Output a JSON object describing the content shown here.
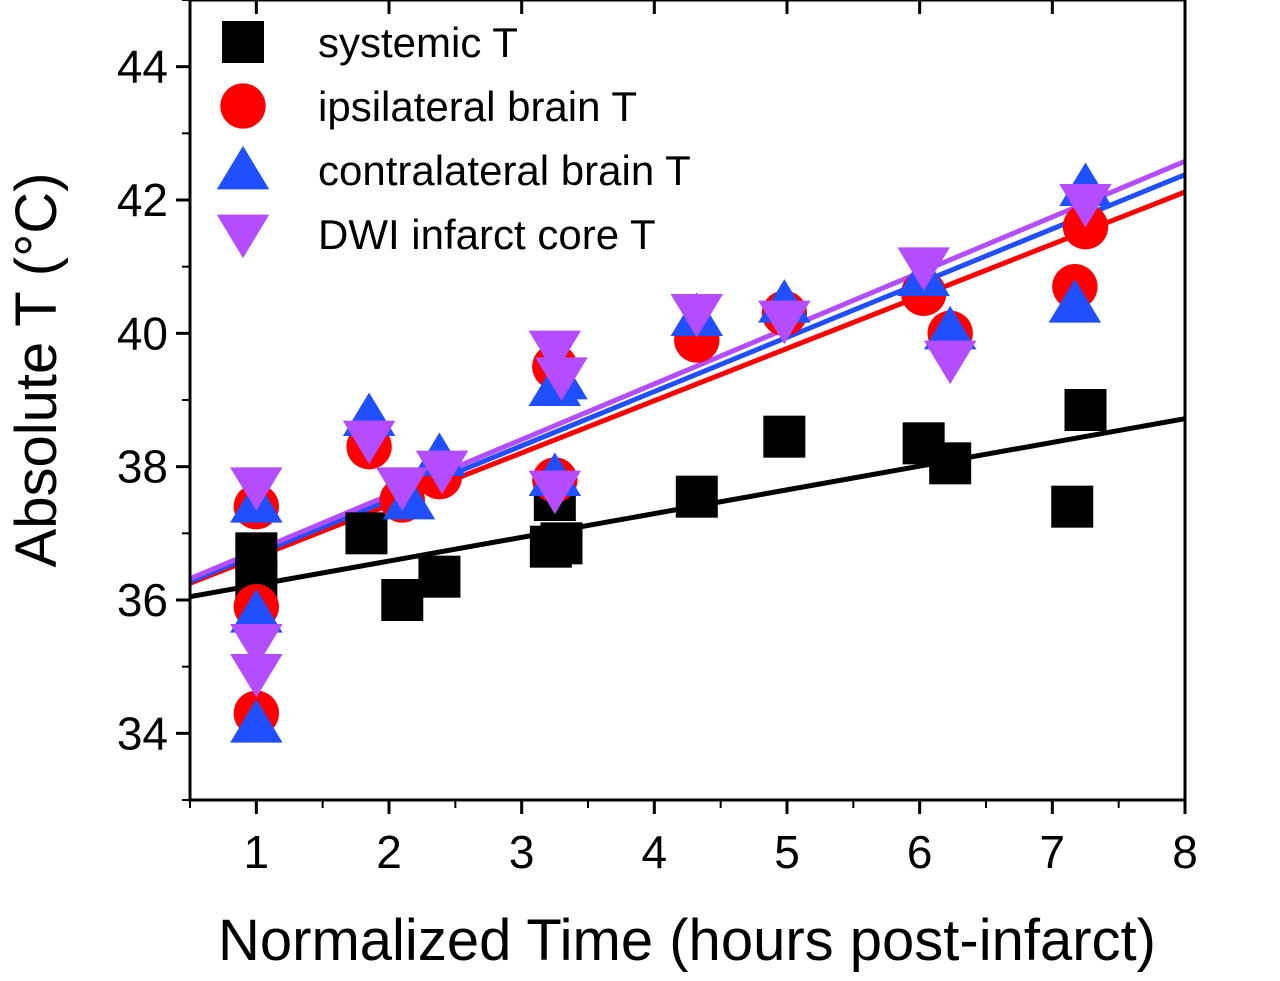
{
  "chart_data": {
    "type": "scatter",
    "xlabel": "Normalized Time (hours post-infarct)",
    "ylabel": "Absolute T (°C)",
    "xlim": [
      0.5,
      8
    ],
    "ylim": [
      33,
      45
    ],
    "x_ticks": [
      1,
      2,
      3,
      4,
      5,
      6,
      7,
      8
    ],
    "y_ticks": [
      34,
      36,
      38,
      40,
      42,
      44
    ],
    "grid": false,
    "legend_position": "top-left",
    "series": [
      {
        "name": "systemic T",
        "marker": "square",
        "color": "#000000",
        "points": [
          [
            1.0,
            36.7
          ],
          [
            1.0,
            36.3
          ],
          [
            1.83,
            37.0
          ],
          [
            2.1,
            36.0
          ],
          [
            2.38,
            36.35
          ],
          [
            3.22,
            36.8
          ],
          [
            3.3,
            36.85
          ],
          [
            3.25,
            37.5
          ],
          [
            4.32,
            37.55
          ],
          [
            4.98,
            38.45
          ],
          [
            6.03,
            38.35
          ],
          [
            6.23,
            38.05
          ],
          [
            7.15,
            37.4
          ],
          [
            7.25,
            38.85
          ]
        ],
        "fit": {
          "x": [
            0.5,
            8
          ],
          "y": [
            36.05,
            38.72
          ]
        }
      },
      {
        "name": "ipsilateral brain T",
        "marker": "circle",
        "color": "#ff0000",
        "points": [
          [
            1.0,
            37.4
          ],
          [
            1.0,
            35.9
          ],
          [
            1.0,
            34.3
          ],
          [
            1.85,
            38.3
          ],
          [
            2.1,
            37.5
          ],
          [
            2.38,
            37.85
          ],
          [
            3.25,
            39.5
          ],
          [
            3.25,
            37.8
          ],
          [
            4.32,
            39.9
          ],
          [
            4.98,
            40.3
          ],
          [
            6.03,
            40.6
          ],
          [
            6.23,
            40.0
          ],
          [
            7.17,
            40.7
          ],
          [
            7.25,
            41.6
          ]
        ],
        "fit": {
          "x": [
            0.5,
            8
          ],
          "y": [
            36.25,
            42.12
          ]
        }
      },
      {
        "name": "contralateral brain T",
        "marker": "triangle-up",
        "color": "#1f4fff",
        "points": [
          [
            1.0,
            37.45
          ],
          [
            1.0,
            35.8
          ],
          [
            1.0,
            34.15
          ],
          [
            1.85,
            38.75
          ],
          [
            2.15,
            37.5
          ],
          [
            2.38,
            38.15
          ],
          [
            3.25,
            39.2
          ],
          [
            3.3,
            39.3
          ],
          [
            3.25,
            37.85
          ],
          [
            4.32,
            40.25
          ],
          [
            4.98,
            40.45
          ],
          [
            6.03,
            40.85
          ],
          [
            6.23,
            40.05
          ],
          [
            7.17,
            40.45
          ],
          [
            7.25,
            42.2
          ]
        ],
        "fit": {
          "x": [
            0.5,
            8
          ],
          "y": [
            36.28,
            42.38
          ]
        }
      },
      {
        "name": "DWI infarct core T",
        "marker": "triangle-down",
        "color": "#b44cff",
        "points": [
          [
            1.0,
            37.7
          ],
          [
            1.0,
            35.35
          ],
          [
            1.0,
            34.9
          ],
          [
            1.85,
            38.4
          ],
          [
            2.1,
            37.7
          ],
          [
            2.4,
            37.95
          ],
          [
            3.25,
            39.75
          ],
          [
            3.3,
            39.35
          ],
          [
            3.25,
            37.65
          ],
          [
            4.32,
            40.3
          ],
          [
            4.98,
            40.2
          ],
          [
            6.03,
            41.0
          ],
          [
            6.23,
            39.6
          ],
          [
            7.25,
            41.95
          ]
        ],
        "fit": {
          "x": [
            0.5,
            8
          ],
          "y": [
            36.32,
            42.58
          ]
        }
      }
    ]
  }
}
